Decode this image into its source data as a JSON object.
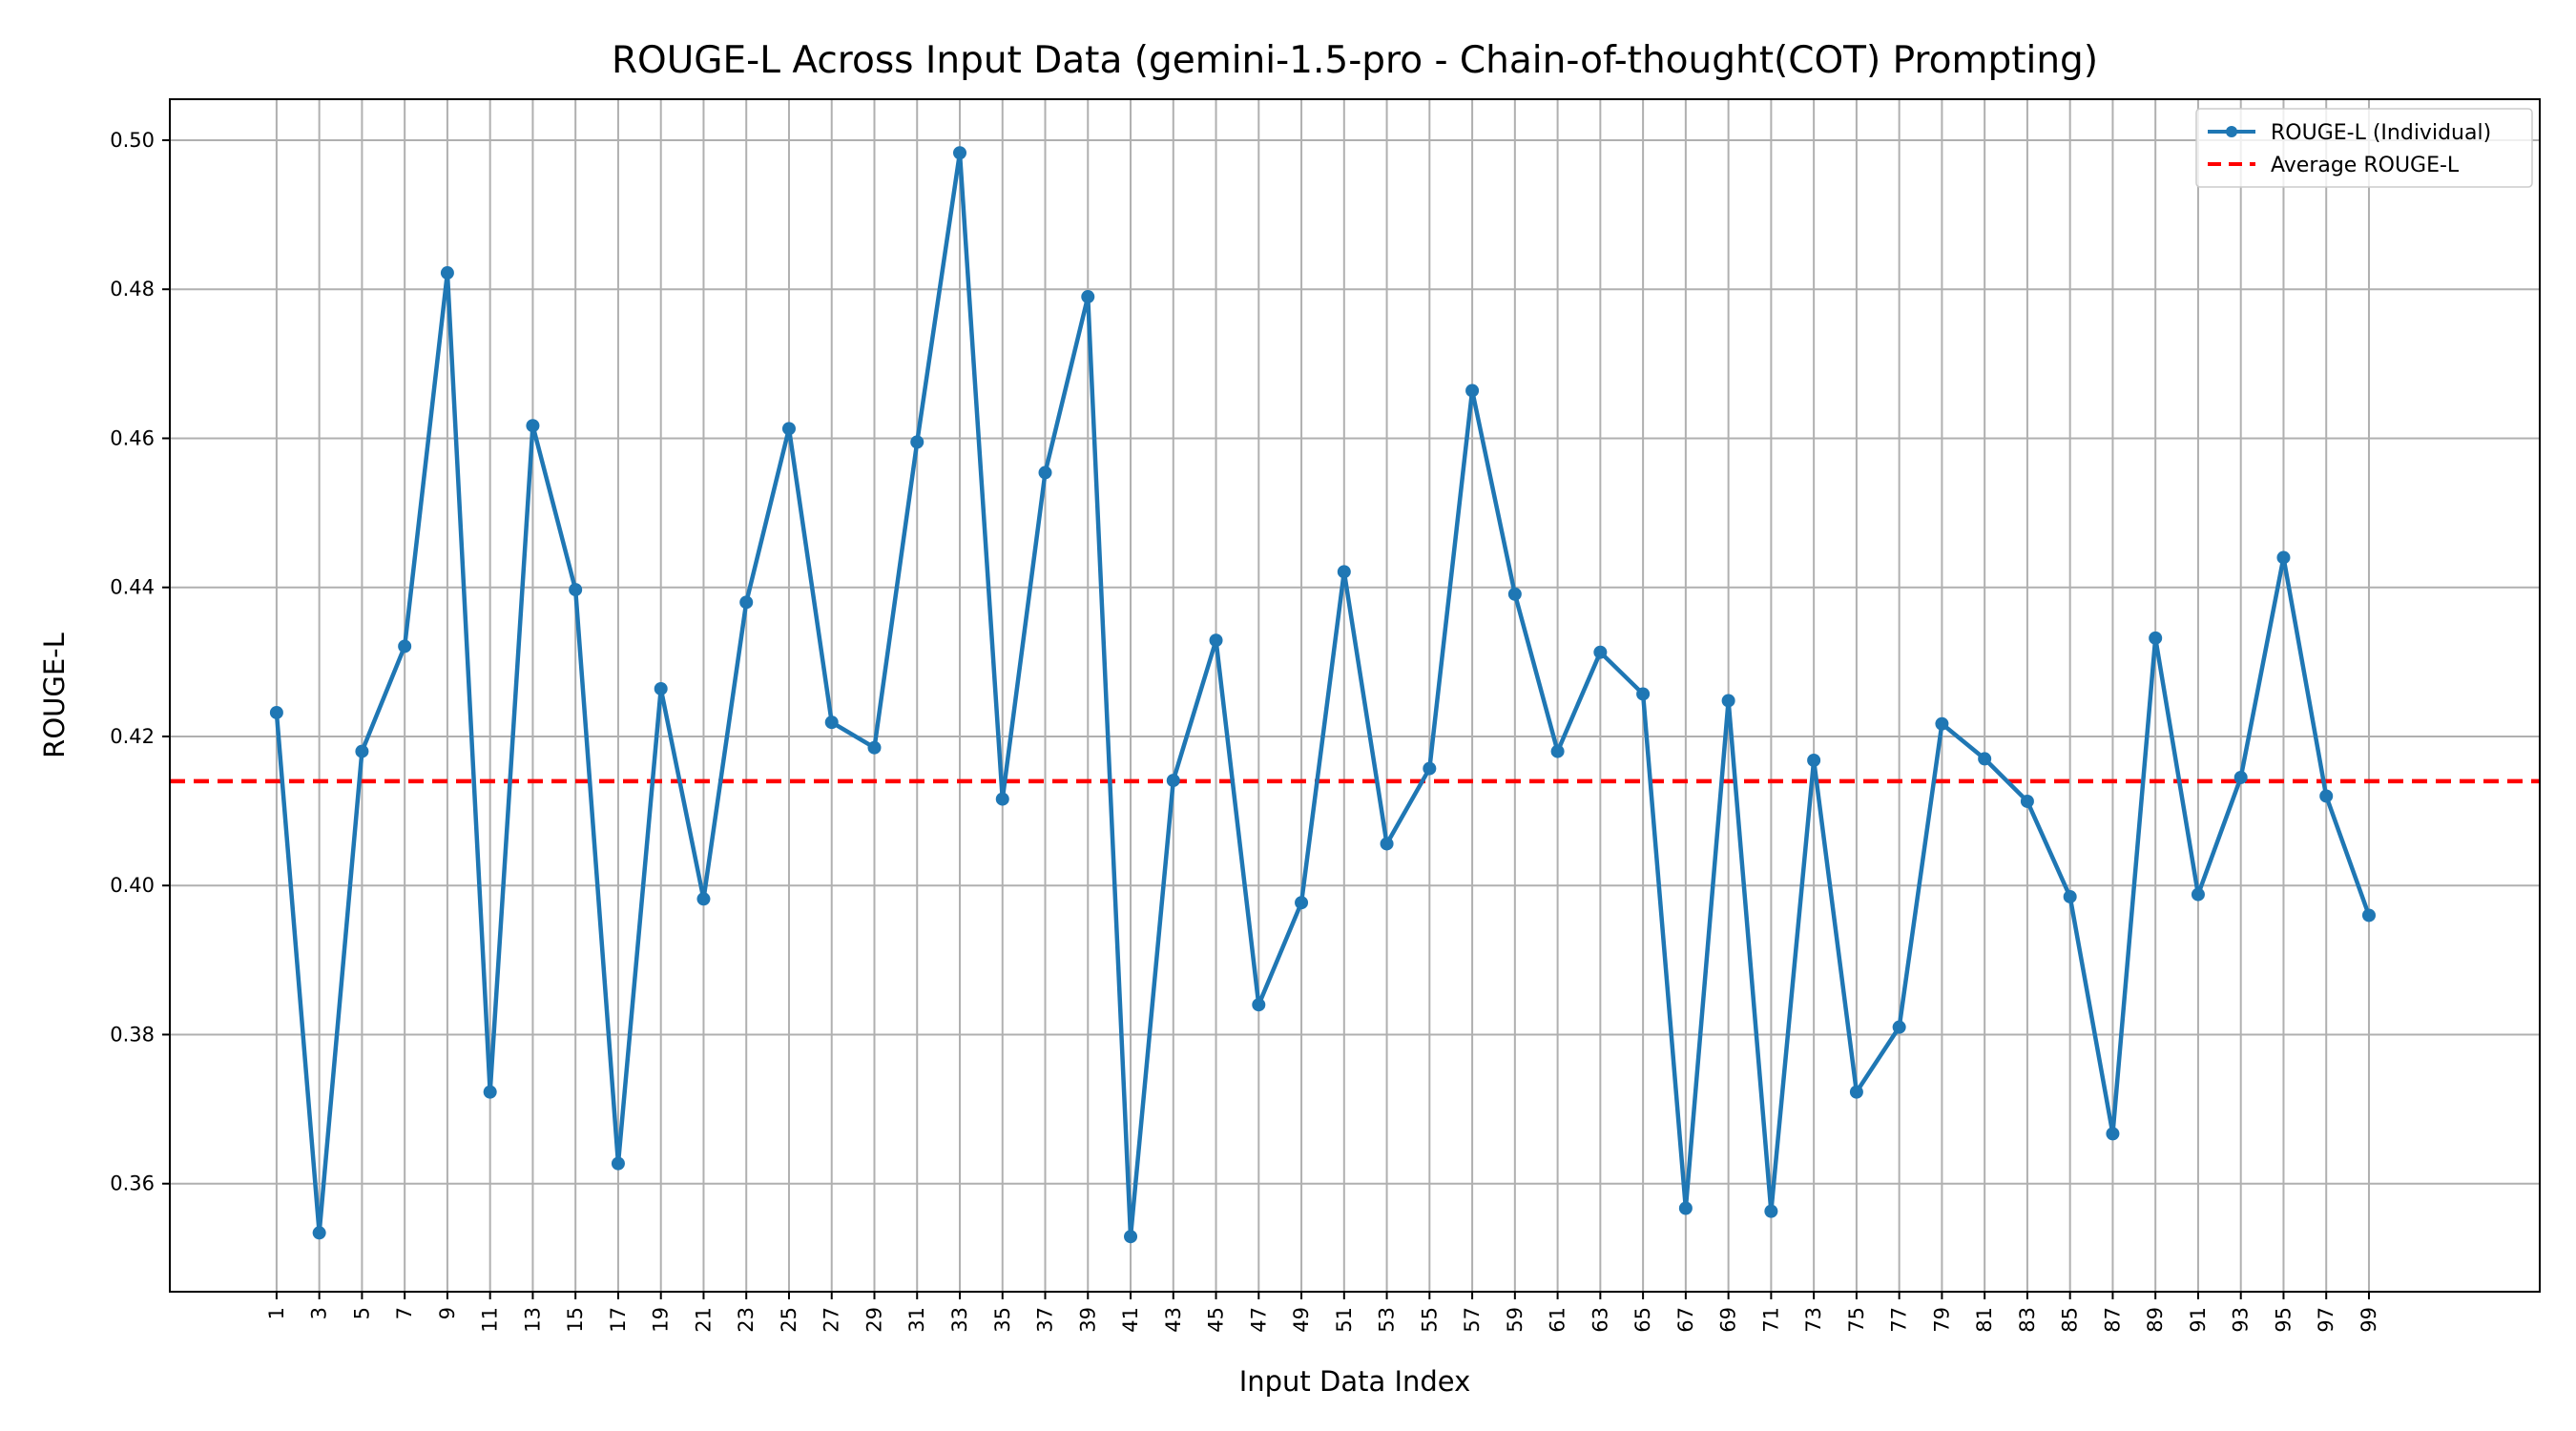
{
  "chart_data": {
    "type": "line",
    "title": "ROUGE-L Across Input Data (gemini-1.5-pro - Chain-of-thought(COT) Prompting)",
    "xlabel": "Input Data Index",
    "ylabel": "ROUGE-L",
    "x": [
      1,
      3,
      5,
      7,
      9,
      11,
      13,
      15,
      17,
      19,
      21,
      23,
      25,
      27,
      29,
      31,
      33,
      35,
      37,
      39,
      41,
      43,
      45,
      47,
      49,
      51,
      53,
      55,
      57,
      59,
      61,
      63,
      65,
      67,
      69,
      71,
      73,
      75,
      77,
      79,
      81,
      83,
      85,
      87,
      89,
      91,
      93,
      95,
      97,
      99
    ],
    "xticks": [
      "1",
      "3",
      "5",
      "7",
      "9",
      "11",
      "13",
      "15",
      "17",
      "19",
      "21",
      "23",
      "25",
      "27",
      "29",
      "31",
      "33",
      "35",
      "37",
      "39",
      "41",
      "43",
      "45",
      "47",
      "49",
      "51",
      "53",
      "55",
      "57",
      "59",
      "61",
      "63",
      "65",
      "67",
      "69",
      "71",
      "73",
      "75",
      "77",
      "79",
      "81",
      "83",
      "85",
      "87",
      "89",
      "91",
      "93",
      "95",
      "97",
      "99"
    ],
    "xlim": [
      -4,
      107
    ],
    "ylim": [
      0.3455,
      0.5055
    ],
    "yticks": [
      "0.36",
      "0.38",
      "0.40",
      "0.42",
      "0.44",
      "0.46",
      "0.48",
      "0.50"
    ],
    "ytick_values": [
      0.36,
      0.38,
      0.4,
      0.42,
      0.44,
      0.46,
      0.48,
      0.5
    ],
    "series": [
      {
        "name": "ROUGE-L (Individual)",
        "color": "#1f77b4",
        "style": "solid-with-markers",
        "values": [
          0.4232,
          0.3534,
          0.418,
          0.4321,
          0.4822,
          0.3723,
          0.4617,
          0.4397,
          0.3627,
          0.4264,
          0.3982,
          0.438,
          0.4613,
          0.4219,
          0.4185,
          0.4595,
          0.4983,
          0.4116,
          0.4554,
          0.479,
          0.3529,
          0.4141,
          0.4329,
          0.384,
          0.3977,
          0.4421,
          0.4056,
          0.4157,
          0.4664,
          0.4391,
          0.418,
          0.4313,
          0.4257,
          0.3567,
          0.4248,
          0.3563,
          0.4168,
          0.3723,
          0.381,
          0.4217,
          0.417,
          0.4113,
          0.3985,
          0.3667,
          0.4332,
          0.3988,
          0.4145,
          0.444,
          0.412,
          0.396
        ]
      }
    ],
    "average": {
      "name": "Average ROUGE-L",
      "value": 0.414,
      "color": "#ff0000",
      "style": "dashed"
    },
    "grid": true,
    "legend_position": "top-right"
  }
}
